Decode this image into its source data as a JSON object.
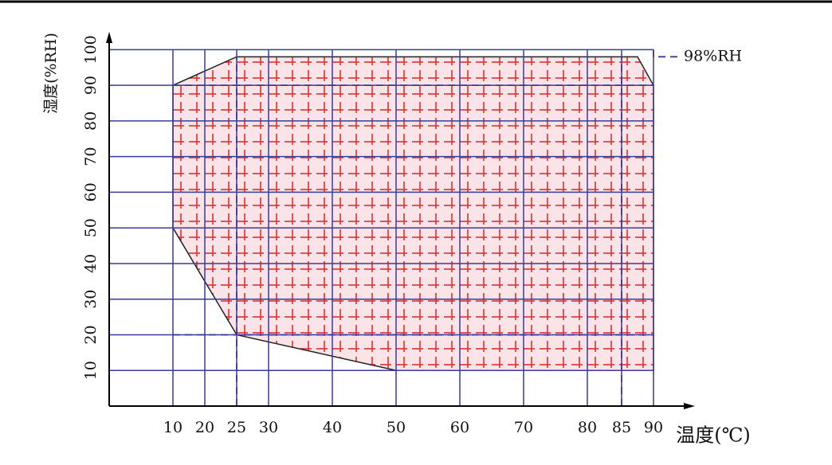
{
  "chart_data": {
    "type": "region",
    "x_label": "温度(℃)",
    "y_label": "湿度(%RH)",
    "annotation": "98%RH",
    "x": [
      10,
      25,
      87.5,
      90,
      90,
      50,
      25,
      20,
      10
    ],
    "y": [
      90,
      98,
      98,
      90,
      10,
      10,
      20,
      35,
      50
    ],
    "color": "#e03030",
    "xticks": [
      10,
      20,
      25,
      30,
      40,
      50,
      60,
      70,
      80,
      85,
      90
    ],
    "ylim": [
      0,
      105
    ],
    "yticks": [
      10,
      20,
      30,
      40,
      50,
      60,
      70,
      80,
      90,
      100
    ],
    "ref_x": [
      25,
      85
    ],
    "ref_y": [
      20,
      90
    ],
    "ref_level": 98,
    "grid": true
  }
}
